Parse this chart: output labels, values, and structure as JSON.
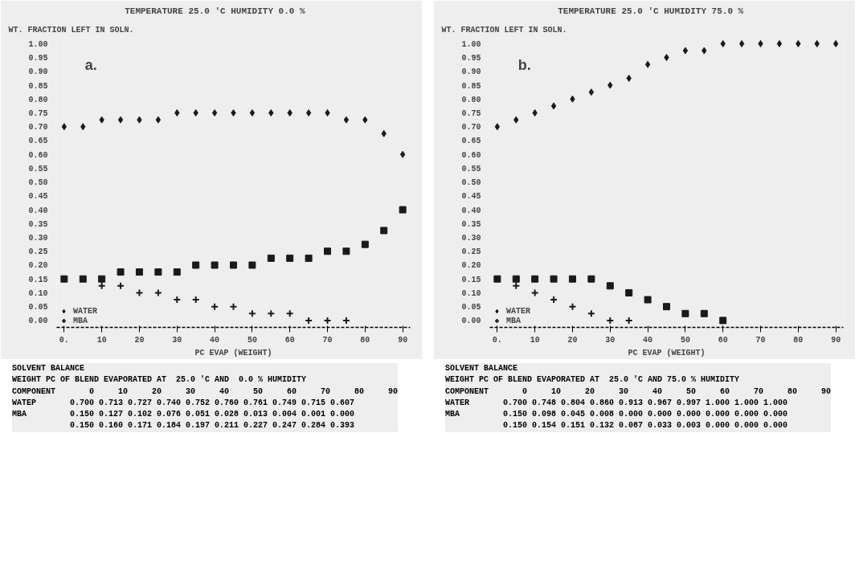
{
  "chart_data": [
    {
      "type": "scatter",
      "title": "TEMPERATURE  25.0 'C     HUMIDITY   0.0 %",
      "ylabel": "WT. FRACTION LEFT IN SOLN.",
      "xlabel": "PC EVAP (WEIGHT)",
      "x": [
        0,
        5,
        10,
        15,
        20,
        25,
        30,
        35,
        40,
        45,
        50,
        55,
        60,
        65,
        70,
        75,
        80,
        85,
        90
      ],
      "series": [
        {
          "name": "WATER",
          "color": "#1a1a1a",
          "marker": "diamond",
          "values": [
            0.7,
            0.7,
            0.725,
            0.725,
            0.725,
            0.725,
            0.75,
            0.75,
            0.75,
            0.75,
            0.75,
            0.75,
            0.75,
            0.75,
            0.75,
            0.725,
            0.725,
            0.675,
            0.6
          ]
        },
        {
          "name": "MBA",
          "color": "#1a1a1a",
          "marker": "cross",
          "values": [
            null,
            null,
            0.125,
            0.125,
            0.1,
            0.1,
            0.075,
            0.075,
            0.05,
            0.05,
            0.025,
            0.025,
            0.025,
            0.0,
            0.0,
            0.0,
            null,
            null,
            null
          ]
        },
        {
          "color": "#1a1a1a",
          "marker": "square",
          "values": [
            0.15,
            0.15,
            0.15,
            0.175,
            0.175,
            0.175,
            0.175,
            0.2,
            0.2,
            0.2,
            0.2,
            0.225,
            0.225,
            0.225,
            0.25,
            0.25,
            0.275,
            0.325,
            0.4
          ]
        }
      ],
      "xlim": [
        -2,
        92
      ],
      "ylim": [
        -0.025,
        1.02
      ],
      "xticks": [
        {
          "value": 0,
          "label": "0."
        },
        10,
        20,
        30,
        40,
        50,
        60,
        70,
        80,
        90
      ],
      "yticks": [
        {
          "value": 0,
          "label": "0.00"
        },
        {
          "value": 0.05,
          "label": "0.05"
        },
        {
          "value": 0.1,
          "label": "0.10"
        },
        {
          "value": 0.15,
          "label": "0.15"
        },
        {
          "value": 0.2,
          "label": "0.20"
        },
        {
          "value": 0.25,
          "label": "0.25"
        },
        {
          "value": 0.3,
          "label": "0.30"
        },
        {
          "value": 0.35,
          "label": "0.35"
        },
        {
          "value": 0.4,
          "label": "0.40"
        },
        {
          "value": 0.45,
          "label": "0.45"
        },
        {
          "value": 0.5,
          "label": "0.50"
        },
        {
          "value": 0.55,
          "label": "0.55"
        },
        {
          "value": 0.6,
          "label": "0.60"
        },
        {
          "value": 0.65,
          "label": "0.65"
        },
        {
          "value": 0.7,
          "label": "0.70"
        },
        {
          "value": 0.75,
          "label": "0.75"
        },
        {
          "value": 0.8,
          "label": "0.80"
        },
        {
          "value": 0.85,
          "label": "0.85"
        },
        {
          "value": 0.9,
          "label": "0.90"
        },
        {
          "value": 0.95,
          "label": "0.95"
        },
        {
          "value": 1.0,
          "label": "1.00"
        }
      ],
      "grid": false,
      "legend": "bottom left",
      "annotations": [
        "a.",
        "SOLVENT BALANCE",
        "WEIGHT PC OF BLEND EVAPORATED AT  25.0 'C AND  0.0 % HUMIDITY",
        "COMPONENT       0     10     20     30     40     50     60     70     80     90",
        "WATEP       0.700 0.713 0.727 0.740 0.752 0.760 0.761 0.749 0.715 0.607",
        "MBA         0.150 0.127 0.102 0.076 0.051 0.028 0.013 0.004 0.001 0.000",
        "            0.150 0.160 0.171 0.184 0.197 0.211 0.227 0.247 0.284 0.393"
      ]
    },
    {
      "type": "scatter",
      "title": "TEMPERATURE  25.0 'C     HUMIDITY  75.0 %",
      "ylabel": "WT. FRACTION LEFT IN SOLN.",
      "xlabel": "PC EVAP (WEIGHT)",
      "x": [
        0,
        5,
        10,
        15,
        20,
        25,
        30,
        35,
        40,
        45,
        50,
        55,
        60,
        65,
        70,
        75,
        80,
        85,
        90
      ],
      "series": [
        {
          "name": "WATER",
          "color": "#1a1a1a",
          "marker": "diamond",
          "values": [
            0.7,
            0.725,
            0.75,
            0.775,
            0.8,
            0.825,
            0.85,
            0.875,
            0.925,
            0.95,
            0.975,
            0.975,
            1.0,
            1.0,
            1.0,
            1.0,
            1.0,
            1.0,
            1.0
          ]
        },
        {
          "name": "MBA",
          "color": "#1a1a1a",
          "marker": "cross",
          "values": [
            null,
            0.125,
            0.1,
            0.075,
            0.05,
            0.025,
            0.0,
            0.0,
            null,
            null,
            null,
            null,
            null,
            null,
            null,
            null,
            null,
            null,
            null
          ]
        },
        {
          "color": "#1a1a1a",
          "marker": "square",
          "values": [
            0.15,
            0.15,
            0.15,
            0.15,
            0.15,
            0.15,
            0.125,
            0.1,
            0.075,
            0.05,
            0.025,
            0.025,
            0.0,
            null,
            null,
            null,
            null,
            null,
            null
          ]
        }
      ],
      "xlim": [
        -2,
        92
      ],
      "ylim": [
        -0.025,
        1.02
      ],
      "xticks": [
        {
          "value": 0,
          "label": "0."
        },
        10,
        20,
        30,
        40,
        50,
        60,
        70,
        80,
        90
      ],
      "yticks": [
        {
          "value": 0,
          "label": "0.00"
        },
        {
          "value": 0.05,
          "label": "0.05"
        },
        {
          "value": 0.1,
          "label": "0.10"
        },
        {
          "value": 0.15,
          "label": "0.15"
        },
        {
          "value": 0.2,
          "label": "0.20"
        },
        {
          "value": 0.25,
          "label": "0.25"
        },
        {
          "value": 0.3,
          "label": "0.30"
        },
        {
          "value": 0.35,
          "label": "0.35"
        },
        {
          "value": 0.4,
          "label": "0.40"
        },
        {
          "value": 0.45,
          "label": "0.45"
        },
        {
          "value": 0.5,
          "label": "0.50"
        },
        {
          "value": 0.55,
          "label": "0.55"
        },
        {
          "value": 0.6,
          "label": "0.60"
        },
        {
          "value": 0.65,
          "label": "0.65"
        },
        {
          "value": 0.7,
          "label": "0.70"
        },
        {
          "value": 0.75,
          "label": "0.75"
        },
        {
          "value": 0.8,
          "label": "0.80"
        },
        {
          "value": 0.85,
          "label": "0.85"
        },
        {
          "value": 0.9,
          "label": "0.90"
        },
        {
          "value": 0.95,
          "label": "0.95"
        },
        {
          "value": 1.0,
          "label": "1.00"
        }
      ],
      "grid": false,
      "legend": "bottom left",
      "annotations": [
        "b.",
        "SOLVENT BALANCE",
        "WEIGHT PC OF BLEND EVAPORATED AT  25.0 'C AND 75.0 % HUMIDITY",
        "COMPONENT       0     10     20     30     40     50     60     70     80     90",
        "WATER       0.700 0.748 0.804 0.860 0.913 0.967 0.997 1.000 1.000 1.000",
        "MBA         0.150 0.098 0.045 0.008 0.000 0.000 0.000 0.000 0.000 0.000",
        "            0.150 0.154 0.151 0.132 0.087 0.033 0.003 0.000 0.000 0.000"
      ]
    }
  ]
}
